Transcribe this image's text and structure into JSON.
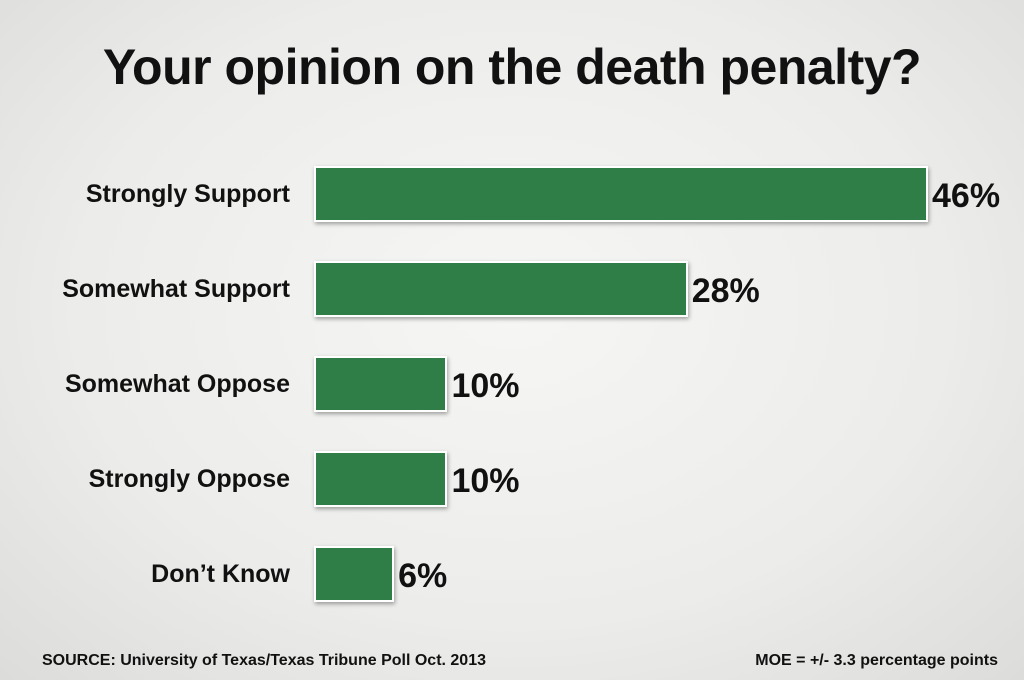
{
  "chart_data": {
    "type": "bar",
    "orientation": "horizontal",
    "title": "Your opinion on the death penalty?",
    "categories": [
      "Strongly Support",
      "Somewhat Support",
      "Somewhat Oppose",
      "Strongly Oppose",
      "Don’t Know"
    ],
    "values": [
      46,
      28,
      10,
      10,
      6
    ],
    "value_labels": [
      "46%",
      "28%",
      "10%",
      "10%",
      "6%"
    ],
    "xlabel": "",
    "ylabel": "",
    "xlim": [
      0,
      46
    ],
    "grid": false,
    "bar_color": "#2f7d47"
  },
  "footer": {
    "source": "SOURCE: University of Texas/Texas Tribune Poll Oct. 2013",
    "moe": "MOE = +/- 3.3 percentage points"
  }
}
